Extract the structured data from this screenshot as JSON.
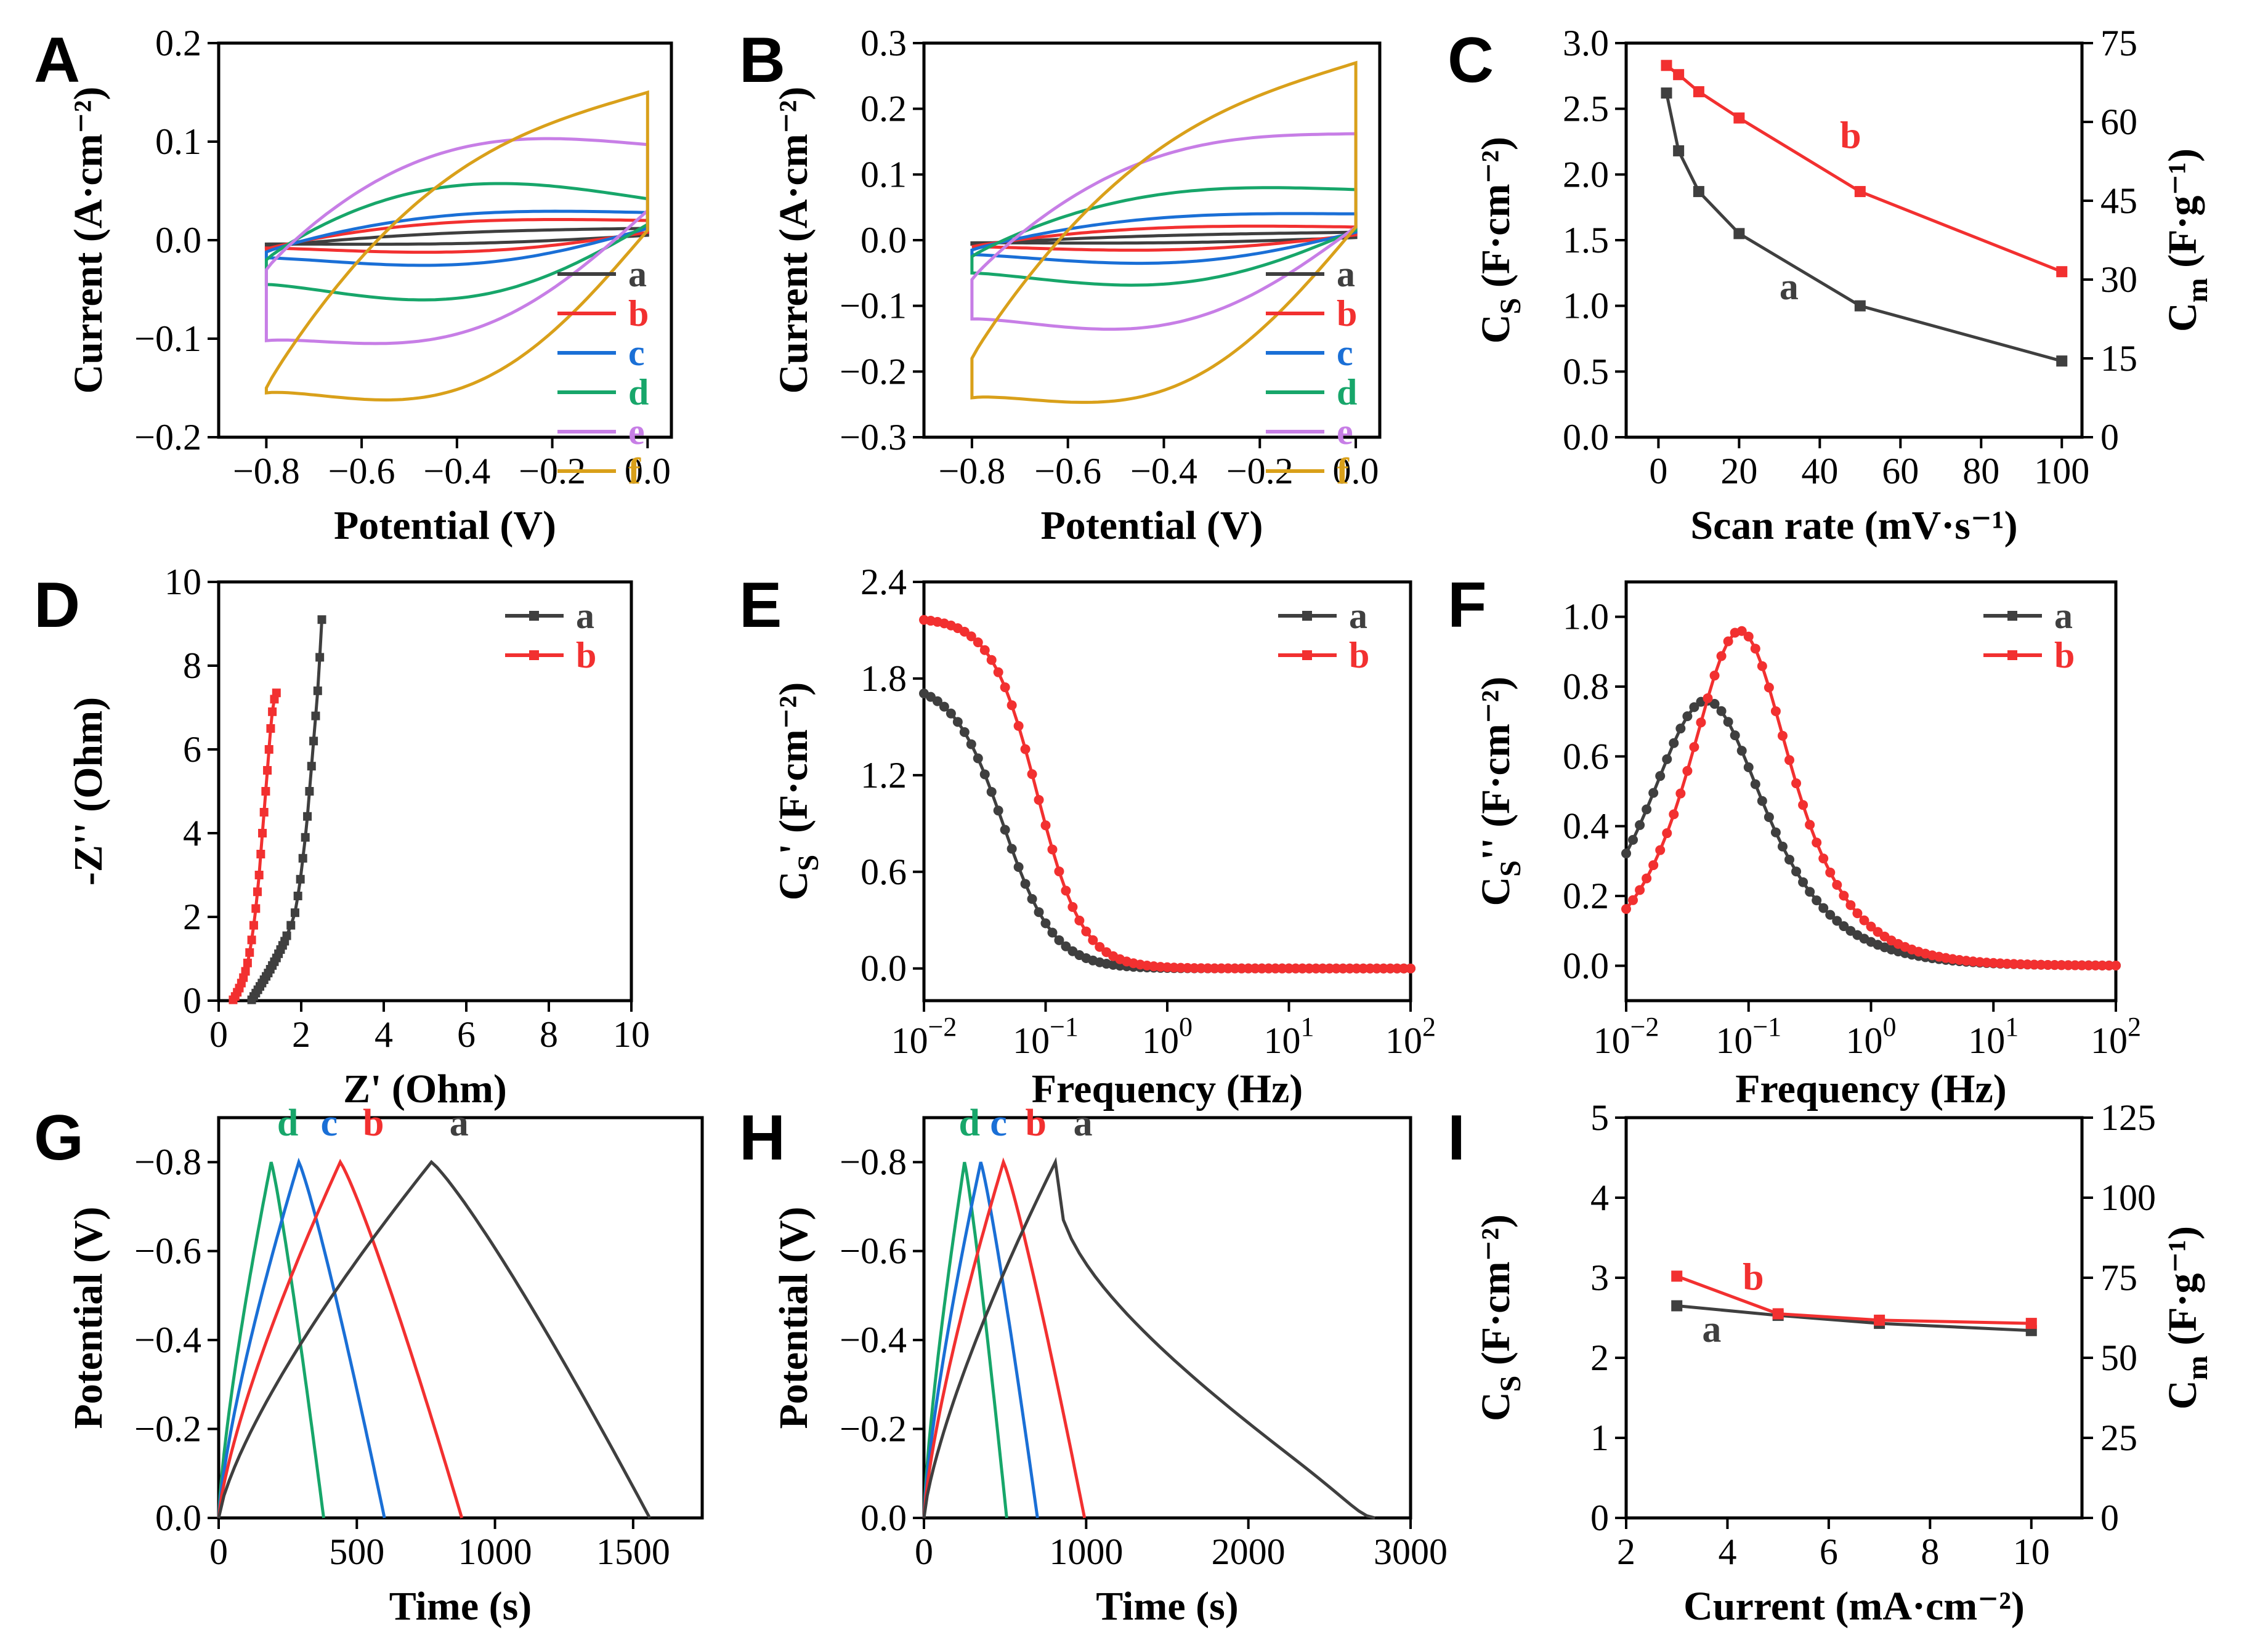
{
  "figure": {
    "panels": [
      "A",
      "B",
      "C",
      "D",
      "E",
      "F",
      "G",
      "H",
      "I"
    ]
  },
  "colors": {
    "a": "#3f3f3f",
    "b": "#f23030",
    "c": "#1a6fd6",
    "d": "#17a66a",
    "e": "#c77ee6",
    "f": "#d9a01a"
  },
  "chart_data": [
    {
      "id": "A",
      "type": "line",
      "title": "A",
      "xlabel": "Potential (V)",
      "ylabel": "Current (A·cm⁻²)",
      "xlim": [
        -0.9,
        0.05
      ],
      "ylim": [
        -0.2,
        0.2
      ],
      "xticks": [
        -0.8,
        -0.6,
        -0.4,
        -0.2,
        0.0
      ],
      "xtick_labels": [
        "−0.8",
        "−0.6",
        "−0.4",
        "−0.2",
        "0.0"
      ],
      "yticks": [
        -0.2,
        -0.1,
        0.0,
        0.1,
        0.2
      ],
      "ytick_labels": [
        "−0.2",
        "−0.1",
        "0.0",
        "0.1",
        "0.2"
      ],
      "legend": [
        "a",
        "b",
        "c",
        "d",
        "e",
        "f"
      ],
      "series": [
        {
          "name": "a",
          "cv": {
            "x0": -0.8,
            "x1": 0.0,
            "t0": -0.007,
            "t1": 0.012,
            "b0": -0.004,
            "b1": 0.005,
            "hu": 0.005,
            "hl": -0.004
          }
        },
        {
          "name": "b",
          "cv": {
            "x0": -0.8,
            "x1": 0.0,
            "t0": -0.009,
            "t1": 0.02,
            "b0": -0.008,
            "b1": 0.008,
            "hu": 0.013,
            "hl": -0.012
          }
        },
        {
          "name": "c",
          "cv": {
            "x0": -0.8,
            "x1": 0.0,
            "t0": -0.012,
            "t1": 0.028,
            "b0": -0.018,
            "b1": 0.012,
            "hu": 0.018,
            "hl": -0.022
          }
        },
        {
          "name": "d",
          "cv": {
            "x0": -0.8,
            "x1": 0.0,
            "t0": -0.02,
            "t1": 0.042,
            "b0": -0.045,
            "b1": 0.016,
            "hu": 0.045,
            "hl": -0.045
          }
        },
        {
          "name": "e",
          "cv": {
            "x0": -0.8,
            "x1": 0.0,
            "t0": -0.03,
            "t1": 0.097,
            "b0": -0.102,
            "b1": 0.03,
            "hu": 0.06,
            "hl": -0.06
          }
        },
        {
          "name": "f",
          "cv": {
            "x0": -0.8,
            "x1": 0.0,
            "t0": -0.15,
            "t1": 0.15,
            "b0": -0.155,
            "b1": 0.01,
            "hu": 0.07,
            "hl": -0.08
          }
        }
      ]
    },
    {
      "id": "B",
      "type": "line",
      "title": "B",
      "xlabel": "Potential (V)",
      "ylabel": "Current (A·cm⁻²)",
      "xlim": [
        -0.9,
        0.05
      ],
      "ylim": [
        -0.3,
        0.3
      ],
      "xticks": [
        -0.8,
        -0.6,
        -0.4,
        -0.2,
        0.0
      ],
      "xtick_labels": [
        "−0.8",
        "−0.6",
        "−0.4",
        "−0.2",
        "0.0"
      ],
      "yticks": [
        -0.3,
        -0.2,
        -0.1,
        0.0,
        0.1,
        0.2,
        0.3
      ],
      "ytick_labels": [
        "−0.3",
        "−0.2",
        "−0.1",
        "0.0",
        "0.1",
        "0.2",
        "0.3"
      ],
      "legend": [
        "a",
        "b",
        "c",
        "d",
        "e",
        "f"
      ],
      "series": [
        {
          "name": "a",
          "cv": {
            "x0": -0.8,
            "x1": 0.0,
            "t0": -0.006,
            "t1": 0.012,
            "b0": -0.004,
            "b1": 0.004,
            "hu": 0.004,
            "hl": -0.004
          }
        },
        {
          "name": "b",
          "cv": {
            "x0": -0.8,
            "x1": 0.0,
            "t0": -0.01,
            "t1": 0.02,
            "b0": -0.01,
            "b1": 0.008,
            "hu": 0.014,
            "hl": -0.014
          }
        },
        {
          "name": "c",
          "cv": {
            "x0": -0.8,
            "x1": 0.0,
            "t0": -0.015,
            "t1": 0.04,
            "b0": -0.022,
            "b1": 0.012,
            "hu": 0.022,
            "hl": -0.03
          }
        },
        {
          "name": "d",
          "cv": {
            "x0": -0.8,
            "x1": 0.0,
            "t0": -0.025,
            "t1": 0.077,
            "b0": -0.05,
            "b1": 0.015,
            "hu": 0.045,
            "hl": -0.05
          }
        },
        {
          "name": "e",
          "cv": {
            "x0": -0.8,
            "x1": 0.0,
            "t0": -0.06,
            "t1": 0.162,
            "b0": -0.12,
            "b1": 0.02,
            "hu": 0.08,
            "hl": -0.08
          }
        },
        {
          "name": "f",
          "cv": {
            "x0": -0.8,
            "x1": 0.0,
            "t0": -0.18,
            "t1": 0.27,
            "b0": -0.24,
            "b1": 0.02,
            "hu": 0.1,
            "hl": -0.12
          }
        }
      ]
    },
    {
      "id": "C",
      "type": "line",
      "title": "C",
      "xlabel": "Scan rate (mV·s⁻¹)",
      "ylabel": "C",
      "ylabel_sub": "S",
      "ylabel_rest": " (F·cm⁻²)",
      "y2label": "C",
      "y2label_sub": "m",
      "y2label_rest": " (F·g⁻¹)",
      "xlim": [
        -8,
        105
      ],
      "ylim": [
        0.0,
        3.0
      ],
      "y2lim": [
        0,
        75
      ],
      "xticks": [
        0,
        20,
        40,
        60,
        80,
        100
      ],
      "xtick_labels": [
        "0",
        "20",
        "40",
        "60",
        "80",
        "100"
      ],
      "yticks": [
        0.0,
        0.5,
        1.0,
        1.5,
        2.0,
        2.5,
        3.0
      ],
      "ytick_labels": [
        "0.0",
        "0.5",
        "1.0",
        "1.5",
        "2.0",
        "2.5",
        "3.0"
      ],
      "y2ticks": [
        0,
        15,
        30,
        45,
        60,
        75
      ],
      "y2tick_labels": [
        "0",
        "15",
        "30",
        "45",
        "60",
        "75"
      ],
      "series": [
        {
          "name": "a",
          "x": [
            2,
            5,
            10,
            20,
            50,
            100
          ],
          "y": [
            2.62,
            2.18,
            1.87,
            1.55,
            1.0,
            0.58
          ]
        },
        {
          "name": "b",
          "x": [
            2,
            5,
            10,
            20,
            50,
            100
          ],
          "y": [
            2.83,
            2.76,
            2.63,
            2.43,
            1.87,
            1.26
          ]
        }
      ],
      "annotations": [
        {
          "text": "b",
          "x": 45,
          "y": 2.2,
          "series": "b"
        },
        {
          "text": "a",
          "x": 30,
          "y": 1.05,
          "series": "a"
        }
      ]
    },
    {
      "id": "D",
      "type": "scatter",
      "title": "D",
      "xlabel": "Z' (Ohm)",
      "ylabel": "-Z'' (Ohm)",
      "xlim": [
        0,
        10
      ],
      "ylim": [
        0,
        10
      ],
      "xticks": [
        0,
        2,
        4,
        6,
        8,
        10
      ],
      "xtick_labels": [
        "0",
        "2",
        "4",
        "6",
        "8",
        "10"
      ],
      "yticks": [
        0,
        2,
        4,
        6,
        8,
        10
      ],
      "ytick_labels": [
        "0",
        "2",
        "4",
        "6",
        "8",
        "10"
      ],
      "legend": [
        "a",
        "b"
      ],
      "series": [
        {
          "name": "a",
          "x": [
            0.8,
            0.85,
            0.9,
            0.95,
            1.0,
            1.05,
            1.1,
            1.15,
            1.2,
            1.25,
            1.3,
            1.35,
            1.4,
            1.45,
            1.5,
            1.55,
            1.6,
            1.65,
            1.75,
            1.85,
            1.92,
            1.98,
            2.04,
            2.1,
            2.15,
            2.2,
            2.25,
            2.3,
            2.35,
            2.4,
            2.45,
            2.5
          ],
          "y": [
            0.02,
            0.1,
            0.18,
            0.26,
            0.34,
            0.42,
            0.5,
            0.58,
            0.66,
            0.75,
            0.84,
            0.93,
            1.02,
            1.12,
            1.22,
            1.32,
            1.42,
            1.55,
            1.8,
            2.1,
            2.5,
            2.9,
            3.4,
            3.9,
            4.4,
            5.0,
            5.6,
            6.2,
            6.8,
            7.4,
            8.2,
            9.1
          ]
        },
        {
          "name": "b",
          "x": [
            0.35,
            0.4,
            0.45,
            0.5,
            0.55,
            0.6,
            0.65,
            0.7,
            0.75,
            0.8,
            0.85,
            0.9,
            0.94,
            0.98,
            1.02,
            1.06,
            1.1,
            1.14,
            1.18,
            1.22,
            1.26,
            1.3,
            1.35,
            1.4
          ],
          "y": [
            0.02,
            0.1,
            0.2,
            0.3,
            0.42,
            0.55,
            0.7,
            0.9,
            1.15,
            1.45,
            1.8,
            2.2,
            2.6,
            3.0,
            3.5,
            4.0,
            4.5,
            5.0,
            5.5,
            6.0,
            6.5,
            6.9,
            7.2,
            7.35
          ]
        }
      ]
    },
    {
      "id": "E",
      "type": "line",
      "title": "E",
      "xlabel": "Frequency (Hz)",
      "ylabel": "C",
      "ylabel_sub": "S",
      "ylabel_rest": "' (F·cm⁻²)",
      "xscale": "log",
      "xlim": [
        0.01,
        100
      ],
      "ylim": [
        -0.2,
        2.4
      ],
      "xticks": [
        0.01,
        0.1,
        1,
        10,
        100
      ],
      "xtick_labels": [
        {
          "b": "10",
          "e": "−2"
        },
        {
          "b": "10",
          "e": "−1"
        },
        {
          "b": "10",
          "e": "0"
        },
        {
          "b": "10",
          "e": "1"
        },
        {
          "b": "10",
          "e": "2"
        }
      ],
      "yticks": [
        0.0,
        0.6,
        1.2,
        1.8,
        2.4
      ],
      "ytick_labels": [
        "0.0",
        "0.6",
        "1.2",
        "1.8",
        "2.4"
      ],
      "legend": [
        "a",
        "b"
      ],
      "series": [
        {
          "name": "a",
          "model": "debye",
          "amp": 1.78,
          "fc": 0.045,
          "n": 1.05
        },
        {
          "name": "b",
          "model": "debye",
          "amp": 2.18,
          "fc": 0.085,
          "n": 1.15
        }
      ]
    },
    {
      "id": "F",
      "type": "line",
      "title": "F",
      "xlabel": "Frequency (Hz)",
      "ylabel": "C",
      "ylabel_sub": "S",
      "ylabel_rest": "'' (F·cm⁻²)",
      "xscale": "log",
      "xlim": [
        0.01,
        100
      ],
      "ylim": [
        -0.1,
        1.1
      ],
      "xticks": [
        0.01,
        0.1,
        1,
        10,
        100
      ],
      "xtick_labels": [
        {
          "b": "10",
          "e": "−2"
        },
        {
          "b": "10",
          "e": "−1"
        },
        {
          "b": "10",
          "e": "0"
        },
        {
          "b": "10",
          "e": "1"
        },
        {
          "b": "10",
          "e": "2"
        }
      ],
      "yticks": [
        0.0,
        0.2,
        0.4,
        0.6,
        0.8,
        1.0
      ],
      "ytick_labels": [
        "0.0",
        "0.2",
        "0.4",
        "0.6",
        "0.8",
        "1.0"
      ],
      "legend": [
        "a",
        "b"
      ],
      "series": [
        {
          "name": "a",
          "model": "peak",
          "amp": 0.76,
          "fc": 0.045,
          "n": 1.0
        },
        {
          "name": "b",
          "model": "peak",
          "amp": 0.96,
          "fc": 0.085,
          "n": 1.15
        }
      ]
    },
    {
      "id": "G",
      "type": "line",
      "title": "G",
      "xlabel": "Time (s)",
      "ylabel": "Potential (V)",
      "xlim": [
        0,
        1750
      ],
      "ylim": [
        0.0,
        -0.9
      ],
      "xticks": [
        0,
        500,
        1000,
        1500
      ],
      "xtick_labels": [
        "0",
        "500",
        "1000",
        "1500"
      ],
      "yticks": [
        0.0,
        -0.2,
        -0.4,
        -0.6,
        -0.8
      ],
      "ytick_labels": [
        "0.0",
        "−0.2",
        "−0.4",
        "−0.6",
        "−0.8"
      ],
      "series": [
        {
          "name": "d",
          "x": [
            0,
            190,
            380
          ],
          "vmax": -0.8
        },
        {
          "name": "c",
          "x": [
            0,
            290,
            600
          ],
          "vmax": -0.8
        },
        {
          "name": "b",
          "x": [
            0,
            440,
            880
          ],
          "vmax": -0.8
        },
        {
          "name": "a",
          "x": [
            0,
            770,
            1560
          ],
          "vmax": -0.8
        }
      ],
      "annotations": [
        {
          "text": "d",
          "x": 250,
          "y": -0.86
        },
        {
          "text": "c",
          "x": 400,
          "y": -0.86
        },
        {
          "text": "b",
          "x": 560,
          "y": -0.86
        },
        {
          "text": "a",
          "x": 870,
          "y": -0.86
        }
      ]
    },
    {
      "id": "H",
      "type": "line",
      "title": "H",
      "xlabel": "Time (s)",
      "ylabel": "Potential (V)",
      "xlim": [
        0,
        3000
      ],
      "ylim": [
        0.0,
        -0.9
      ],
      "xticks": [
        0,
        1000,
        2000,
        3000
      ],
      "xtick_labels": [
        "0",
        "1000",
        "2000",
        "3000"
      ],
      "yticks": [
        0.0,
        -0.2,
        -0.4,
        -0.6,
        -0.8
      ],
      "ytick_labels": [
        "0.0",
        "−0.2",
        "−0.4",
        "−0.6",
        "−0.8"
      ],
      "series": [
        {
          "name": "d",
          "x": [
            0,
            250,
            510
          ],
          "vmax": -0.8
        },
        {
          "name": "c",
          "x": [
            0,
            350,
            700
          ],
          "vmax": -0.8
        },
        {
          "name": "b",
          "x": [
            0,
            490,
            990
          ],
          "vmax": -0.8
        },
        {
          "name": "a",
          "x": [
            0,
            810,
            2780
          ],
          "vmax": -0.8
        }
      ],
      "annotations": [
        {
          "text": "d",
          "x": 280,
          "y": -0.86
        },
        {
          "text": "c",
          "x": 460,
          "y": -0.86
        },
        {
          "text": "b",
          "x": 690,
          "y": -0.86
        },
        {
          "text": "a",
          "x": 980,
          "y": -0.86
        }
      ]
    },
    {
      "id": "I",
      "type": "line",
      "title": "I",
      "xlabel": "Current (mA·cm⁻²)",
      "ylabel": "C",
      "ylabel_sub": "S",
      "ylabel_rest": " (F·cm⁻²)",
      "y2label": "C",
      "y2label_sub": "m",
      "y2label_rest": " (F·g⁻¹)",
      "xlim": [
        2,
        11
      ],
      "ylim": [
        0,
        5
      ],
      "y2lim": [
        0,
        125
      ],
      "xticks": [
        2,
        4,
        6,
        8,
        10
      ],
      "xtick_labels": [
        "2",
        "4",
        "6",
        "8",
        "10"
      ],
      "yticks": [
        0,
        1,
        2,
        3,
        4,
        5
      ],
      "ytick_labels": [
        "0",
        "1",
        "2",
        "3",
        "4",
        "5"
      ],
      "y2ticks": [
        0,
        25,
        50,
        75,
        100,
        125
      ],
      "y2tick_labels": [
        "0",
        "25",
        "50",
        "75",
        "100",
        "125"
      ],
      "series": [
        {
          "name": "a",
          "x": [
            3,
            5,
            7,
            10
          ],
          "y": [
            2.65,
            2.53,
            2.43,
            2.34
          ]
        },
        {
          "name": "b",
          "x": [
            3,
            5,
            7,
            10
          ],
          "y": [
            3.02,
            2.55,
            2.47,
            2.43
          ]
        }
      ],
      "annotations": [
        {
          "text": "b",
          "x": 4.3,
          "y": 2.85,
          "series": "b"
        },
        {
          "text": "a",
          "x": 3.5,
          "y": 2.2,
          "series": "a"
        }
      ]
    }
  ]
}
